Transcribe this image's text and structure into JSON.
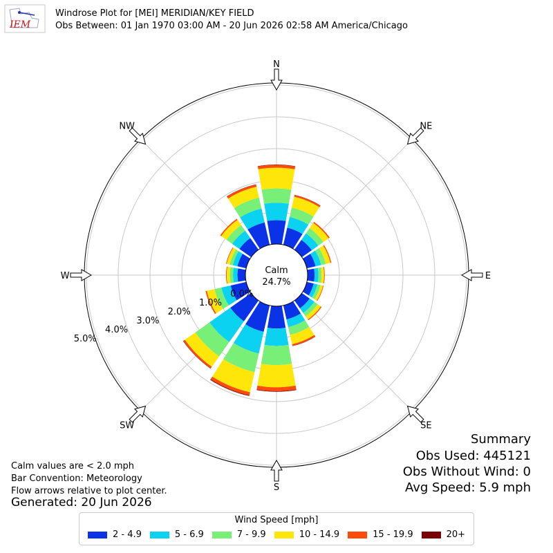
{
  "header": {
    "title": "Windrose Plot for [MEI] MERIDIAN/KEY FIELD",
    "subtitle": "Obs Between: 01 Jan 1970 03:00 AM - 20 Jun 2026 02:58 AM America/Chicago",
    "logo_text": "IEM"
  },
  "notes": {
    "calm": "Calm values are < 2.0 mph",
    "convention": "Bar Convention: Meteorology",
    "arrows": "Flow arrows relative to plot center.",
    "generated": "Generated: 20 Jun 2026"
  },
  "summary": {
    "heading": "Summary",
    "obs_used": "Obs Used: 445121",
    "obs_without_wind": "Obs Without Wind: 0",
    "avg_speed": "Avg Speed: 5.9 mph"
  },
  "colors": {
    "bins": [
      "#0a32e6",
      "#0ad2f0",
      "#78f078",
      "#ffe60a",
      "#ff4b0a",
      "#780000"
    ]
  },
  "chart_data": {
    "type": "bar",
    "projection": "polar",
    "direction_labels": [
      "N",
      "NE",
      "E",
      "SE",
      "S",
      "SW",
      "W",
      "NW"
    ],
    "direction_degrees": [
      0,
      22.5,
      45,
      67.5,
      90,
      112.5,
      135,
      157.5,
      180,
      202.5,
      225,
      247.5,
      270,
      292.5,
      315,
      337.5
    ],
    "radial_tick_labels": [
      "0.0%",
      "1.0%",
      "2.0%",
      "3.0%",
      "4.0%",
      "5.0%"
    ],
    "radial_ticks": [
      0,
      1,
      2,
      3,
      4,
      5
    ],
    "rlim": [
      0,
      5.5
    ],
    "calm_label": "Calm",
    "calm_value": "24.7%",
    "legend_title": "Wind Speed [mph]",
    "grid": true,
    "series": [
      {
        "name": "2 - 4.9",
        "values": [
          0.75,
          0.55,
          0.38,
          0.28,
          0.22,
          0.22,
          0.3,
          0.45,
          0.7,
          0.85,
          0.8,
          0.5,
          0.25,
          0.28,
          0.45,
          0.72
        ]
      },
      {
        "name": "5 - 6.9",
        "values": [
          0.55,
          0.35,
          0.25,
          0.18,
          0.12,
          0.12,
          0.18,
          0.25,
          0.55,
          0.7,
          0.8,
          0.3,
          0.14,
          0.15,
          0.28,
          0.45
        ]
      },
      {
        "name": "7 - 9.9",
        "values": [
          0.45,
          0.3,
          0.2,
          0.15,
          0.1,
          0.1,
          0.13,
          0.25,
          0.6,
          0.6,
          0.55,
          0.22,
          0.1,
          0.1,
          0.22,
          0.35
        ]
      },
      {
        "name": "10 - 14.9",
        "values": [
          0.65,
          0.35,
          0.2,
          0.15,
          0.08,
          0.08,
          0.12,
          0.3,
          0.7,
          0.65,
          0.4,
          0.25,
          0.1,
          0.1,
          0.2,
          0.35
        ]
      },
      {
        "name": "15 - 19.9",
        "values": [
          0.09,
          0.05,
          0.04,
          0.03,
          0.02,
          0.02,
          0.03,
          0.05,
          0.12,
          0.1,
          0.06,
          0.04,
          0.02,
          0.02,
          0.04,
          0.07
        ]
      },
      {
        "name": "20+",
        "values": [
          0.01,
          0.01,
          0.0,
          0.0,
          0.0,
          0.0,
          0.0,
          0.01,
          0.02,
          0.02,
          0.01,
          0.0,
          0.0,
          0.0,
          0.0,
          0.01
        ]
      }
    ]
  }
}
